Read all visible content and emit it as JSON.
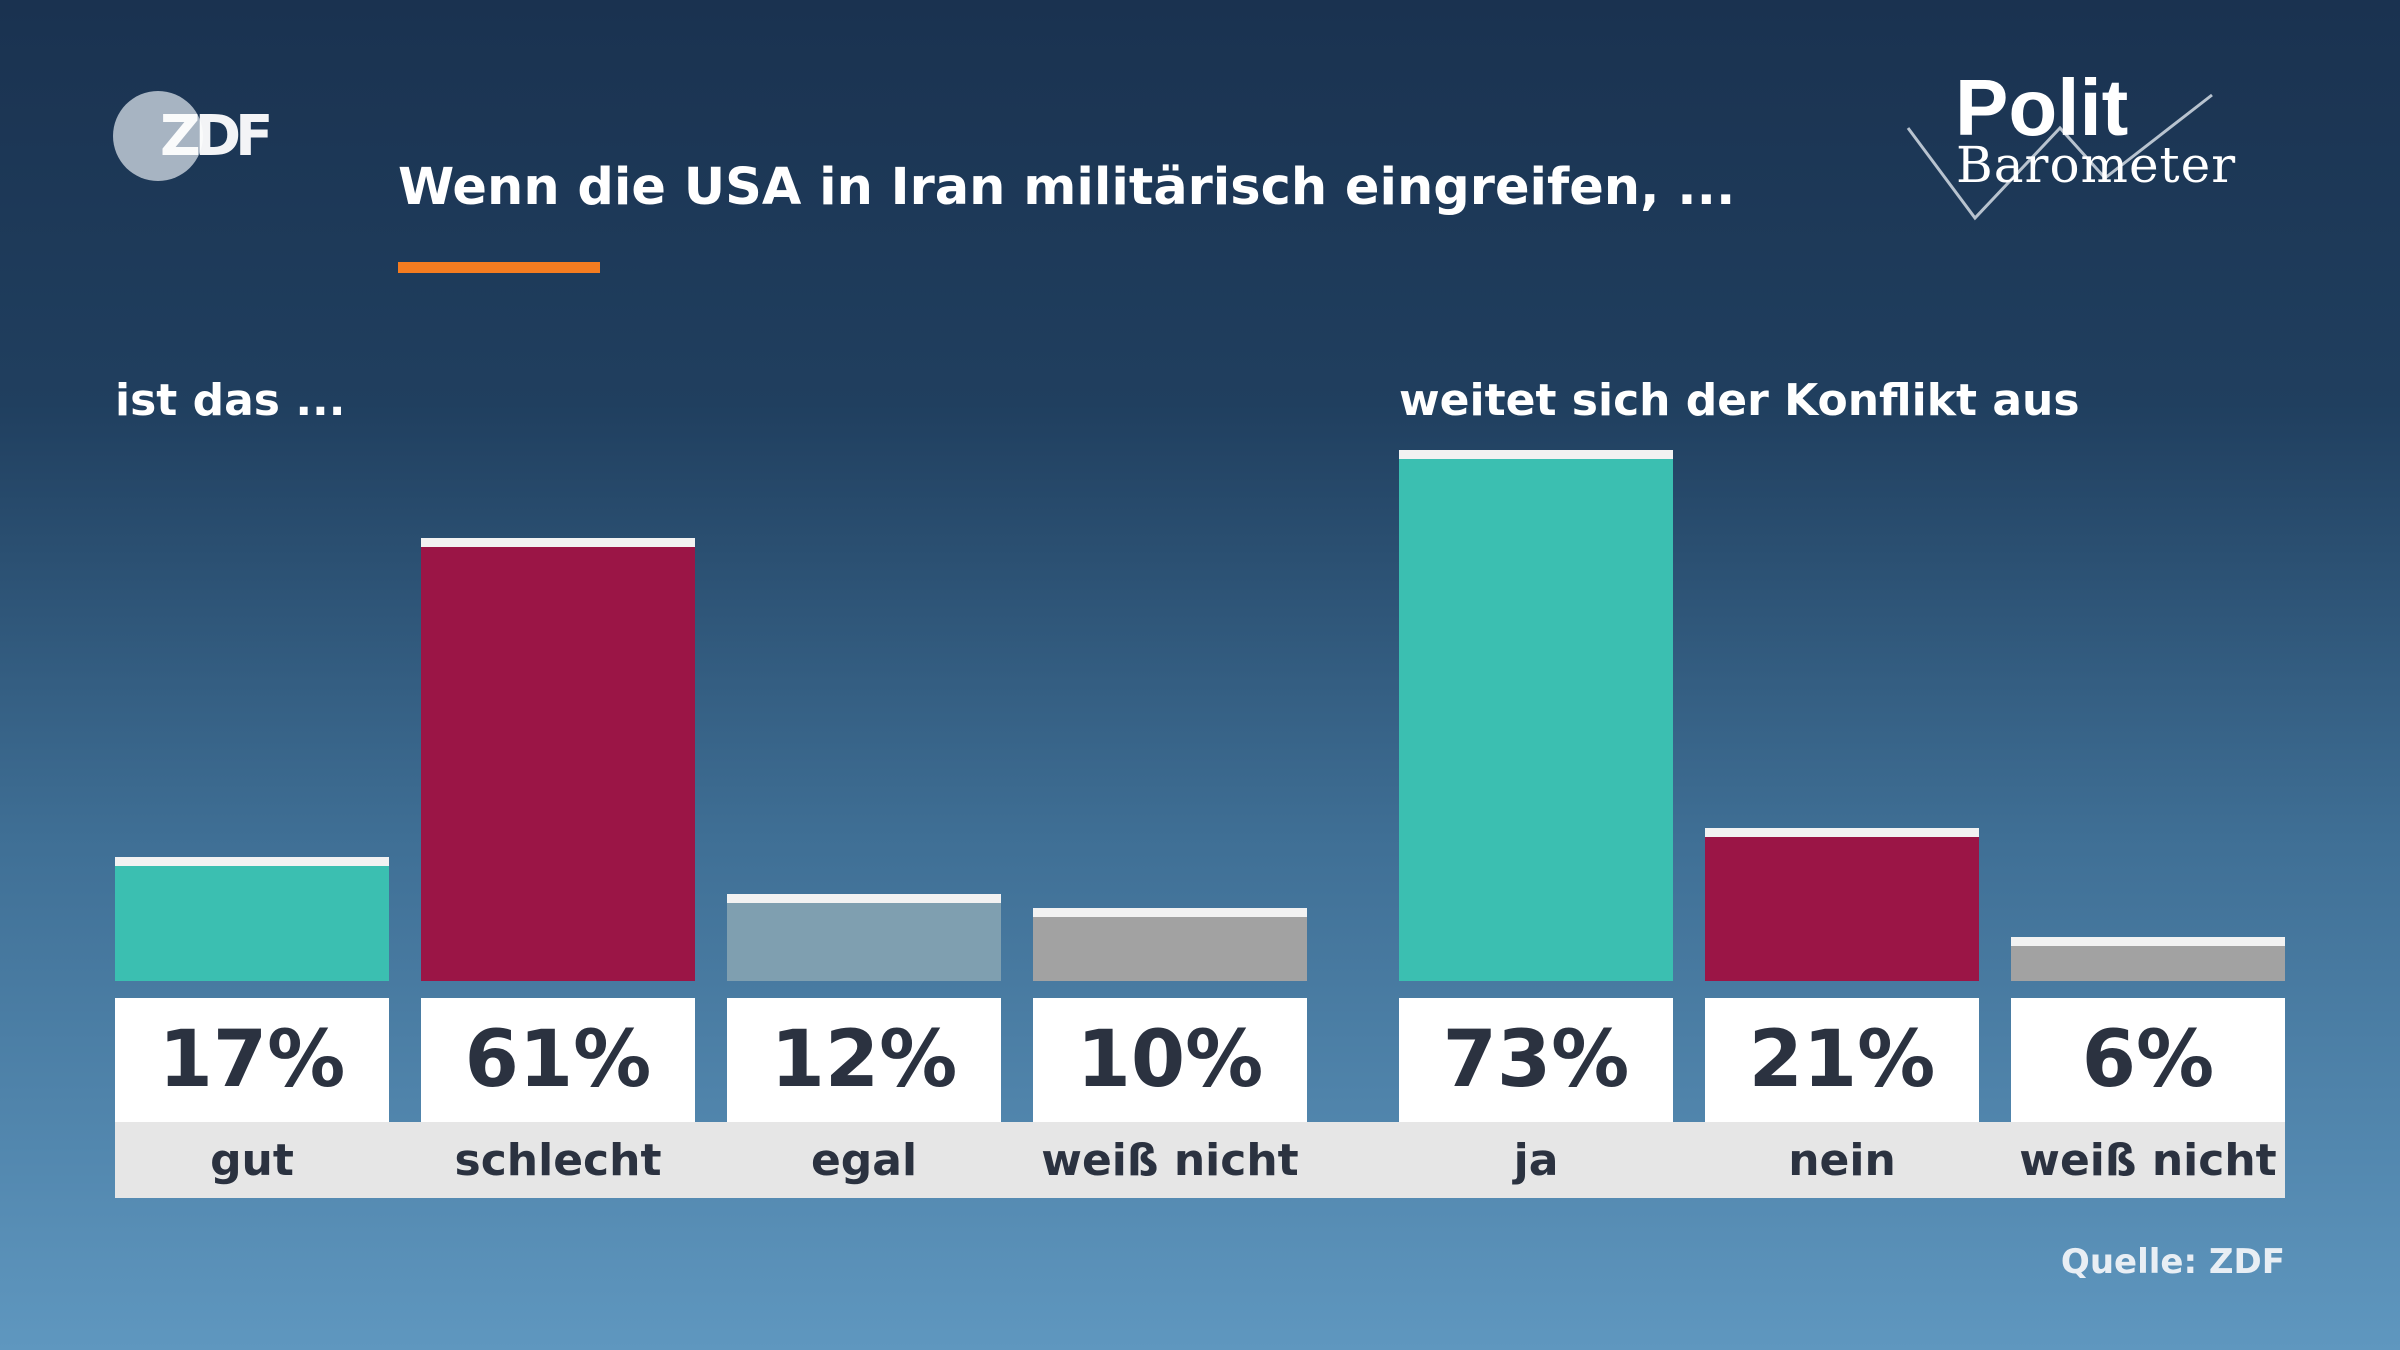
{
  "logo": {
    "broadcaster": "ZDF",
    "brand_top": "Polit",
    "brand_bottom": "Barometer"
  },
  "title": "Wenn die USA in Iran militärisch eingreifen, ...",
  "accent_color": "#f47c20",
  "source": "Quelle: ZDF",
  "chart_data": [
    {
      "type": "bar",
      "title": "ist das ...",
      "categories": [
        "gut",
        "schlecht",
        "egal",
        "weiß nicht"
      ],
      "values": [
        17,
        61,
        12,
        10
      ],
      "labels": [
        "17%",
        "61%",
        "12%",
        "10%"
      ],
      "colors": [
        "#3bbfb1",
        "#9b1546",
        "#7f9fb0",
        "#a2a2a2"
      ],
      "ylim": [
        0,
        100
      ],
      "unit": "%",
      "grid": false
    },
    {
      "type": "bar",
      "title": "weitet sich der Konflikt aus",
      "categories": [
        "ja",
        "nein",
        "weiß nicht"
      ],
      "values": [
        73,
        21,
        6
      ],
      "labels": [
        "73%",
        "21%",
        "6%"
      ],
      "colors": [
        "#3bbfb1",
        "#9b1546",
        "#a2a2a2"
      ],
      "ylim": [
        0,
        100
      ],
      "unit": "%",
      "grid": false
    }
  ]
}
